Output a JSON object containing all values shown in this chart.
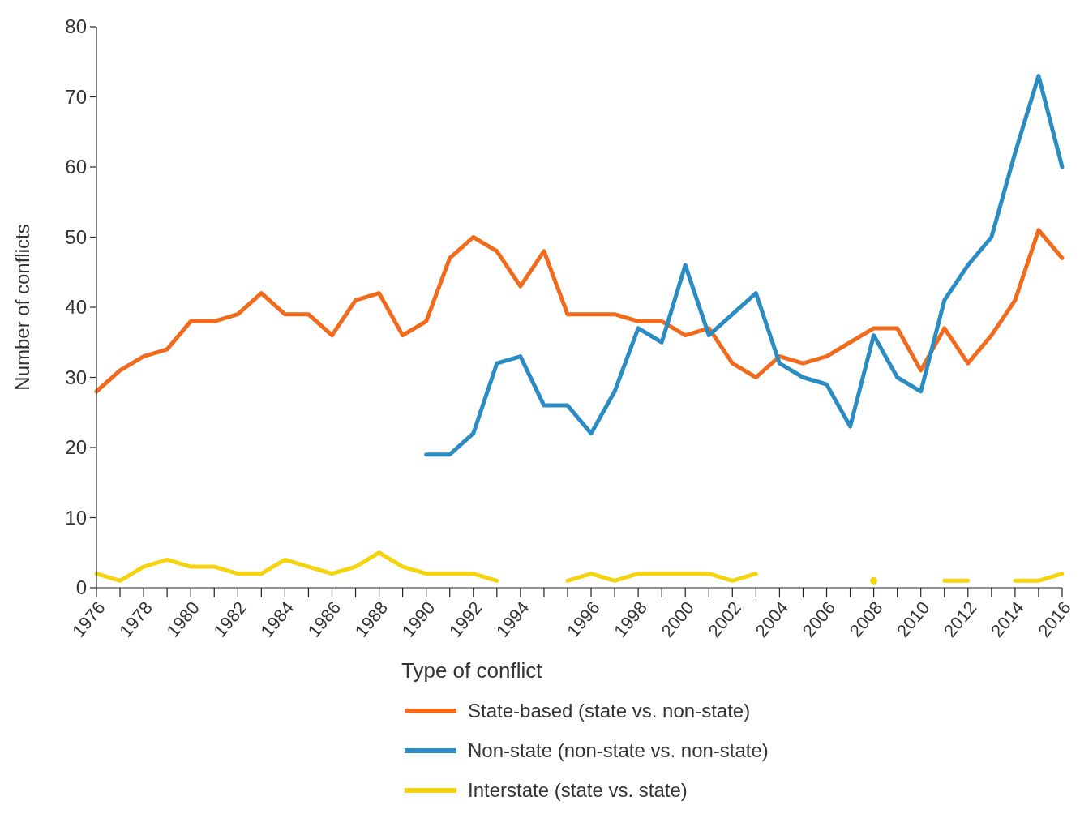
{
  "chart_data": {
    "type": "line",
    "ylabel": "Number of conflicts",
    "legend_title": "Type of conflict",
    "legend": "bottom",
    "grid": false,
    "marker": "none",
    "line_style": "solid",
    "categories": [
      "1976",
      null,
      "1978",
      null,
      "1980",
      null,
      "1982",
      null,
      "1984",
      null,
      "1986",
      null,
      "1988",
      null,
      "1990",
      null,
      "1992",
      null,
      "1994",
      null,
      null,
      "1996",
      null,
      "1998",
      null,
      "2000",
      null,
      "2002",
      null,
      "2004",
      null,
      "2006",
      null,
      "2008",
      null,
      "2010",
      null,
      "2012",
      null,
      "2014",
      null,
      "2016"
    ],
    "ylim": [
      0,
      80
    ],
    "yticks": [
      0,
      10,
      20,
      30,
      40,
      50,
      60,
      70,
      80
    ],
    "series": [
      {
        "name": "State-based (state vs. non-state)",
        "color": "#f26a1b",
        "values": [
          28,
          31,
          33,
          34,
          38,
          38,
          39,
          42,
          39,
          39,
          36,
          41,
          42,
          36,
          38,
          47,
          50,
          48,
          43,
          48,
          39,
          39,
          39,
          38,
          38,
          36,
          37,
          32,
          30,
          33,
          32,
          33,
          35,
          37,
          37,
          31,
          37,
          32,
          36,
          41,
          51,
          47
        ]
      },
      {
        "name": "Non-state (non-state vs. non-state)",
        "color": "#2b8cc4",
        "values": [
          null,
          null,
          null,
          null,
          null,
          null,
          null,
          null,
          null,
          null,
          null,
          null,
          null,
          null,
          19,
          19,
          22,
          32,
          33,
          26,
          26,
          22,
          28,
          37,
          35,
          46,
          36,
          39,
          42,
          32,
          30,
          29,
          23,
          36,
          30,
          28,
          41,
          46,
          50,
          62,
          73,
          60
        ]
      },
      {
        "name": "Interstate (state vs. state)",
        "color": "#f5d40f",
        "values": [
          2,
          1,
          3,
          4,
          3,
          3,
          2,
          2,
          4,
          3,
          2,
          3,
          5,
          3,
          2,
          2,
          2,
          1,
          null,
          null,
          1,
          2,
          1,
          2,
          2,
          2,
          2,
          1,
          2,
          null,
          null,
          null,
          null,
          1,
          null,
          null,
          1,
          1,
          null,
          1,
          1,
          2
        ]
      }
    ]
  }
}
